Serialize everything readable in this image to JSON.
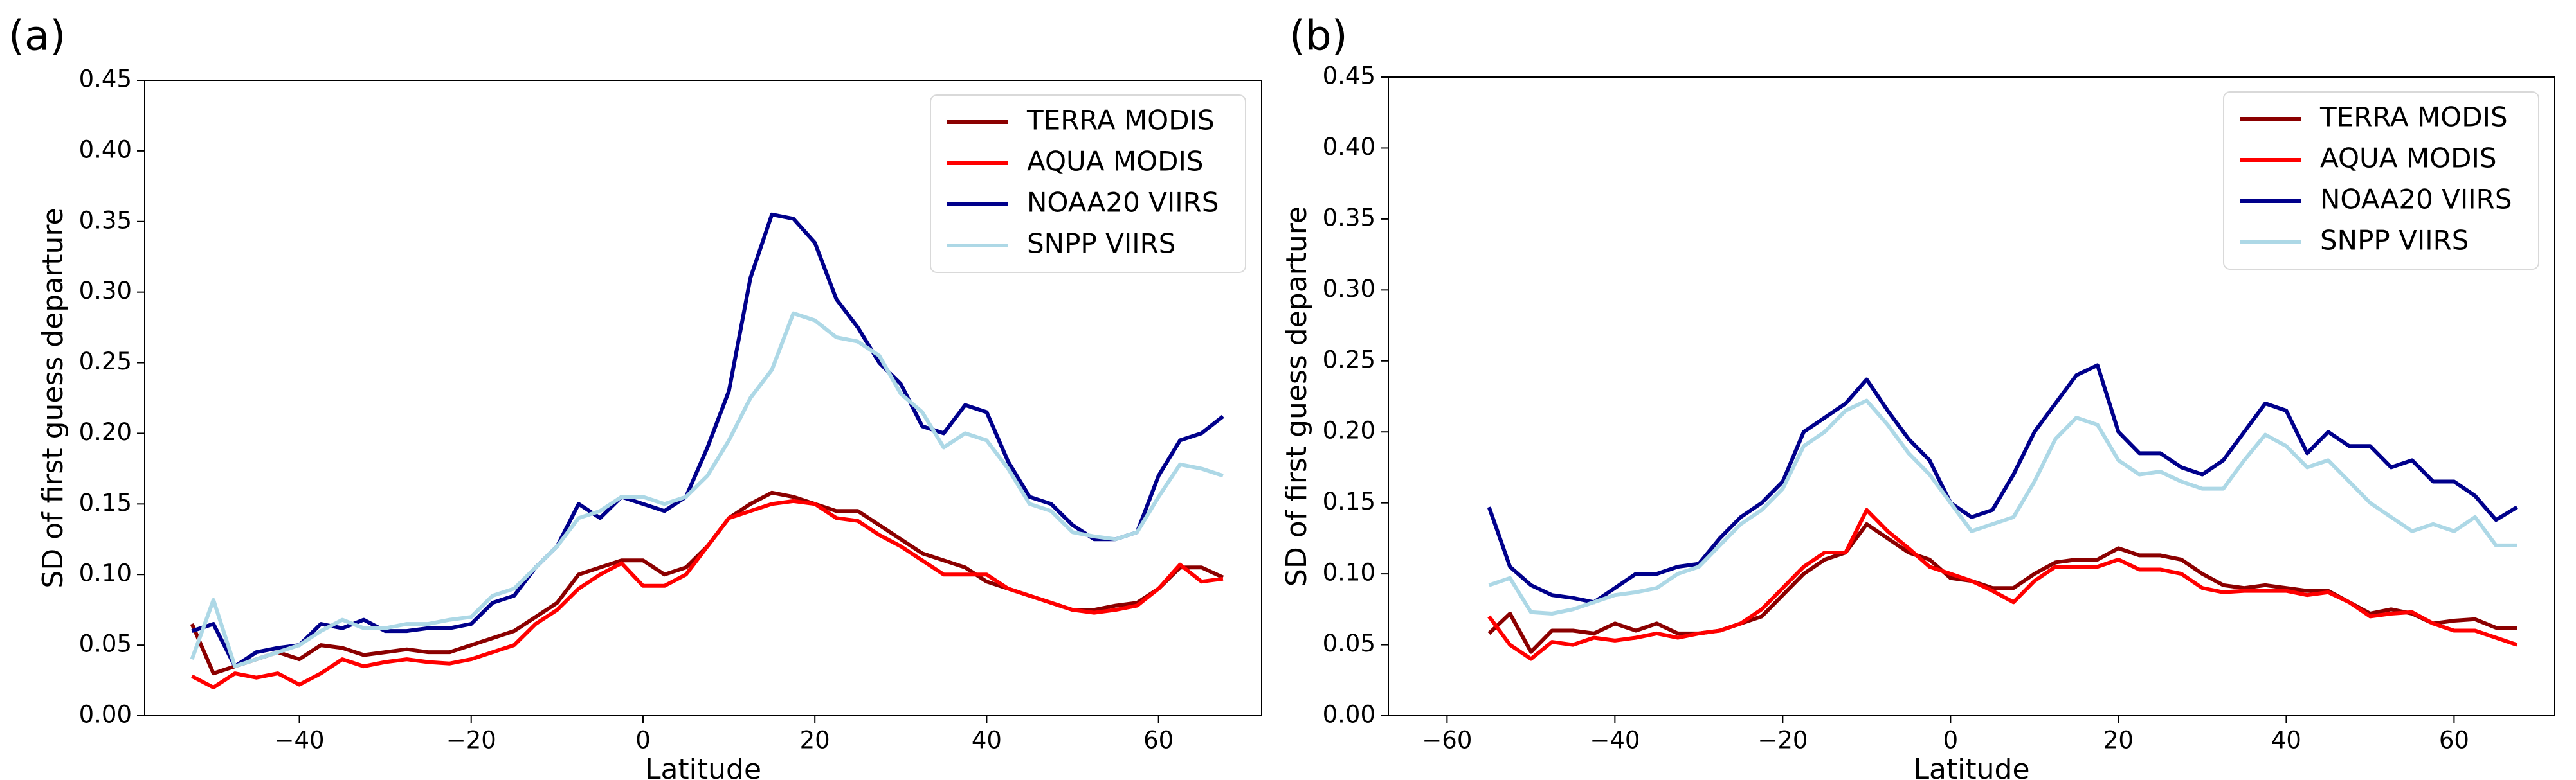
{
  "chart_data": [
    {
      "type": "line",
      "panel_label": "(a)",
      "xlabel": "Latitude",
      "ylabel": "SD of first guess departure",
      "x": [
        -52.5,
        -50,
        -47.5,
        -45,
        -42.5,
        -40,
        -37.5,
        -35,
        -32.5,
        -30,
        -27.5,
        -25,
        -22.5,
        -20,
        -17.5,
        -15,
        -12.5,
        -10,
        -7.5,
        -5,
        -2.5,
        0,
        2.5,
        5,
        7.5,
        10,
        12.5,
        15,
        17.5,
        20,
        22.5,
        25,
        27.5,
        30,
        32.5,
        35,
        37.5,
        40,
        42.5,
        45,
        47.5,
        50,
        52.5,
        55,
        57.5,
        60,
        62.5,
        65,
        67.5
      ],
      "series": [
        {
          "name": "TERRA MODIS",
          "color": "#8b0000",
          "values": [
            0.065,
            0.03,
            0.035,
            0.04,
            0.045,
            0.04,
            0.05,
            0.048,
            0.043,
            0.045,
            0.047,
            0.045,
            0.045,
            0.05,
            0.055,
            0.06,
            0.07,
            0.08,
            0.1,
            0.105,
            0.11,
            0.11,
            0.1,
            0.105,
            0.12,
            0.14,
            0.15,
            0.158,
            0.155,
            0.15,
            0.145,
            0.145,
            0.135,
            0.125,
            0.115,
            0.11,
            0.105,
            0.095,
            0.09,
            0.085,
            0.08,
            0.075,
            0.075,
            0.078,
            0.08,
            0.09,
            0.105,
            0.105,
            0.098
          ]
        },
        {
          "name": "AQUA MODIS",
          "color": "#ff0000",
          "values": [
            0.028,
            0.02,
            0.03,
            0.027,
            0.03,
            0.022,
            0.03,
            0.04,
            0.035,
            0.038,
            0.04,
            0.038,
            0.037,
            0.04,
            0.045,
            0.05,
            0.065,
            0.075,
            0.09,
            0.1,
            0.108,
            0.092,
            0.092,
            0.1,
            0.12,
            0.14,
            0.145,
            0.15,
            0.152,
            0.15,
            0.14,
            0.138,
            0.128,
            0.12,
            0.11,
            0.1,
            0.1,
            0.1,
            0.09,
            0.085,
            0.08,
            0.075,
            0.073,
            0.075,
            0.078,
            0.09,
            0.107,
            0.095,
            0.097
          ]
        },
        {
          "name": "NOAA20 VIIRS",
          "color": "#00008b",
          "values": [
            0.06,
            0.065,
            0.035,
            0.045,
            0.048,
            0.05,
            0.065,
            0.062,
            0.068,
            0.06,
            0.06,
            0.062,
            0.062,
            0.065,
            0.08,
            0.085,
            0.105,
            0.12,
            0.15,
            0.14,
            0.155,
            0.15,
            0.145,
            0.155,
            0.19,
            0.23,
            0.31,
            0.355,
            0.352,
            0.335,
            0.295,
            0.275,
            0.25,
            0.235,
            0.205,
            0.2,
            0.22,
            0.215,
            0.18,
            0.155,
            0.15,
            0.135,
            0.125,
            0.125,
            0.13,
            0.17,
            0.195,
            0.2,
            0.212
          ]
        },
        {
          "name": "SNPP VIIRS",
          "color": "#add8e6",
          "values": [
            0.04,
            0.082,
            0.035,
            0.04,
            0.045,
            0.05,
            0.06,
            0.068,
            0.062,
            0.062,
            0.065,
            0.065,
            0.068,
            0.07,
            0.085,
            0.09,
            0.105,
            0.12,
            0.14,
            0.145,
            0.155,
            0.155,
            0.15,
            0.155,
            0.17,
            0.195,
            0.225,
            0.245,
            0.285,
            0.28,
            0.268,
            0.265,
            0.255,
            0.228,
            0.215,
            0.19,
            0.2,
            0.195,
            0.175,
            0.15,
            0.145,
            0.13,
            0.127,
            0.125,
            0.13,
            0.155,
            0.178,
            0.175,
            0.17
          ]
        }
      ],
      "xlim": [
        -58,
        72
      ],
      "xticks": [
        {
          "value": -40,
          "label": "−40"
        },
        {
          "value": -20,
          "label": "−20"
        },
        0,
        20,
        40,
        60
      ],
      "ylim": [
        0,
        0.45
      ],
      "yticks": [
        {
          "value": 0,
          "label": "0.00"
        },
        {
          "value": 0.05,
          "label": "0.05"
        },
        {
          "value": 0.1,
          "label": "0.10"
        },
        {
          "value": 0.15,
          "label": "0.15"
        },
        {
          "value": 0.2,
          "label": "0.20"
        },
        {
          "value": 0.25,
          "label": "0.25"
        },
        {
          "value": 0.3,
          "label": "0.30"
        },
        {
          "value": 0.35,
          "label": "0.35"
        },
        {
          "value": 0.4,
          "label": "0.40"
        },
        {
          "value": 0.45,
          "label": "0.45"
        }
      ],
      "legend": "upper right",
      "grid": false
    },
    {
      "type": "line",
      "panel_label": "(b)",
      "xlabel": "Latitude",
      "ylabel": "SD of first guess departure",
      "x": [
        -55,
        -52.5,
        -50,
        -47.5,
        -45,
        -42.5,
        -40,
        -37.5,
        -35,
        -32.5,
        -30,
        -27.5,
        -25,
        -22.5,
        -20,
        -17.5,
        -15,
        -12.5,
        -10,
        -7.5,
        -5,
        -2.5,
        0,
        2.5,
        5,
        7.5,
        10,
        12.5,
        15,
        17.5,
        20,
        22.5,
        25,
        27.5,
        30,
        32.5,
        35,
        37.5,
        40,
        42.5,
        45,
        47.5,
        50,
        52.5,
        55,
        57.5,
        60,
        62.5,
        65,
        67.5
      ],
      "series": [
        {
          "name": "TERRA MODIS",
          "color": "#8b0000",
          "values": [
            0.058,
            0.072,
            0.045,
            0.06,
            0.06,
            0.058,
            0.065,
            0.06,
            0.065,
            0.058,
            0.058,
            0.06,
            0.065,
            0.07,
            0.085,
            0.1,
            0.11,
            0.115,
            0.135,
            0.125,
            0.115,
            0.11,
            0.097,
            0.095,
            0.09,
            0.09,
            0.1,
            0.108,
            0.11,
            0.11,
            0.118,
            0.113,
            0.113,
            0.11,
            0.1,
            0.092,
            0.09,
            0.092,
            0.09,
            0.088,
            0.088,
            0.08,
            0.072,
            0.075,
            0.072,
            0.065,
            0.067,
            0.068,
            0.062,
            0.062
          ]
        },
        {
          "name": "AQUA MODIS",
          "color": "#ff0000",
          "values": [
            0.07,
            0.05,
            0.04,
            0.052,
            0.05,
            0.055,
            0.053,
            0.055,
            0.058,
            0.055,
            0.058,
            0.06,
            0.065,
            0.075,
            0.09,
            0.105,
            0.115,
            0.115,
            0.145,
            0.13,
            0.118,
            0.105,
            0.1,
            0.095,
            0.088,
            0.08,
            0.095,
            0.105,
            0.105,
            0.105,
            0.11,
            0.103,
            0.103,
            0.1,
            0.09,
            0.087,
            0.088,
            0.088,
            0.088,
            0.085,
            0.087,
            0.08,
            0.07,
            0.072,
            0.073,
            0.065,
            0.06,
            0.06,
            0.055,
            0.05
          ]
        },
        {
          "name": "NOAA20 VIIRS",
          "color": "#00008b",
          "values": [
            0.147,
            0.105,
            0.092,
            0.085,
            0.083,
            0.08,
            0.09,
            0.1,
            0.1,
            0.105,
            0.107,
            0.125,
            0.14,
            0.15,
            0.165,
            0.2,
            0.21,
            0.22,
            0.237,
            0.215,
            0.195,
            0.18,
            0.15,
            0.14,
            0.145,
            0.17,
            0.2,
            0.22,
            0.24,
            0.247,
            0.2,
            0.185,
            0.185,
            0.175,
            0.17,
            0.18,
            0.2,
            0.22,
            0.215,
            0.185,
            0.2,
            0.19,
            0.19,
            0.175,
            0.18,
            0.165,
            0.165,
            0.155,
            0.138,
            0.147
          ]
        },
        {
          "name": "SNPP VIIRS",
          "color": "#add8e6",
          "values": [
            0.092,
            0.097,
            0.073,
            0.072,
            0.075,
            0.08,
            0.085,
            0.087,
            0.09,
            0.1,
            0.105,
            0.12,
            0.135,
            0.145,
            0.16,
            0.19,
            0.2,
            0.215,
            0.222,
            0.205,
            0.185,
            0.17,
            0.15,
            0.13,
            0.135,
            0.14,
            0.165,
            0.195,
            0.21,
            0.205,
            0.18,
            0.17,
            0.172,
            0.165,
            0.16,
            0.16,
            0.18,
            0.198,
            0.19,
            0.175,
            0.18,
            0.165,
            0.15,
            0.14,
            0.13,
            0.135,
            0.13,
            0.14,
            0.12,
            0.12
          ]
        }
      ],
      "xlim": [
        -67,
        72
      ],
      "xticks": [
        {
          "value": -60,
          "label": "−60"
        },
        {
          "value": -40,
          "label": "−40"
        },
        {
          "value": -20,
          "label": "−20"
        },
        0,
        20,
        40,
        60
      ],
      "ylim": [
        0,
        0.45
      ],
      "yticks": [
        {
          "value": 0,
          "label": "0.00"
        },
        {
          "value": 0.05,
          "label": "0.05"
        },
        {
          "value": 0.1,
          "label": "0.10"
        },
        {
          "value": 0.15,
          "label": "0.15"
        },
        {
          "value": 0.2,
          "label": "0.20"
        },
        {
          "value": 0.25,
          "label": "0.25"
        },
        {
          "value": 0.3,
          "label": "0.30"
        },
        {
          "value": 0.35,
          "label": "0.35"
        },
        {
          "value": 0.4,
          "label": "0.40"
        },
        {
          "value": 0.45,
          "label": "0.45"
        }
      ],
      "legend": "upper right",
      "grid": false
    }
  ]
}
